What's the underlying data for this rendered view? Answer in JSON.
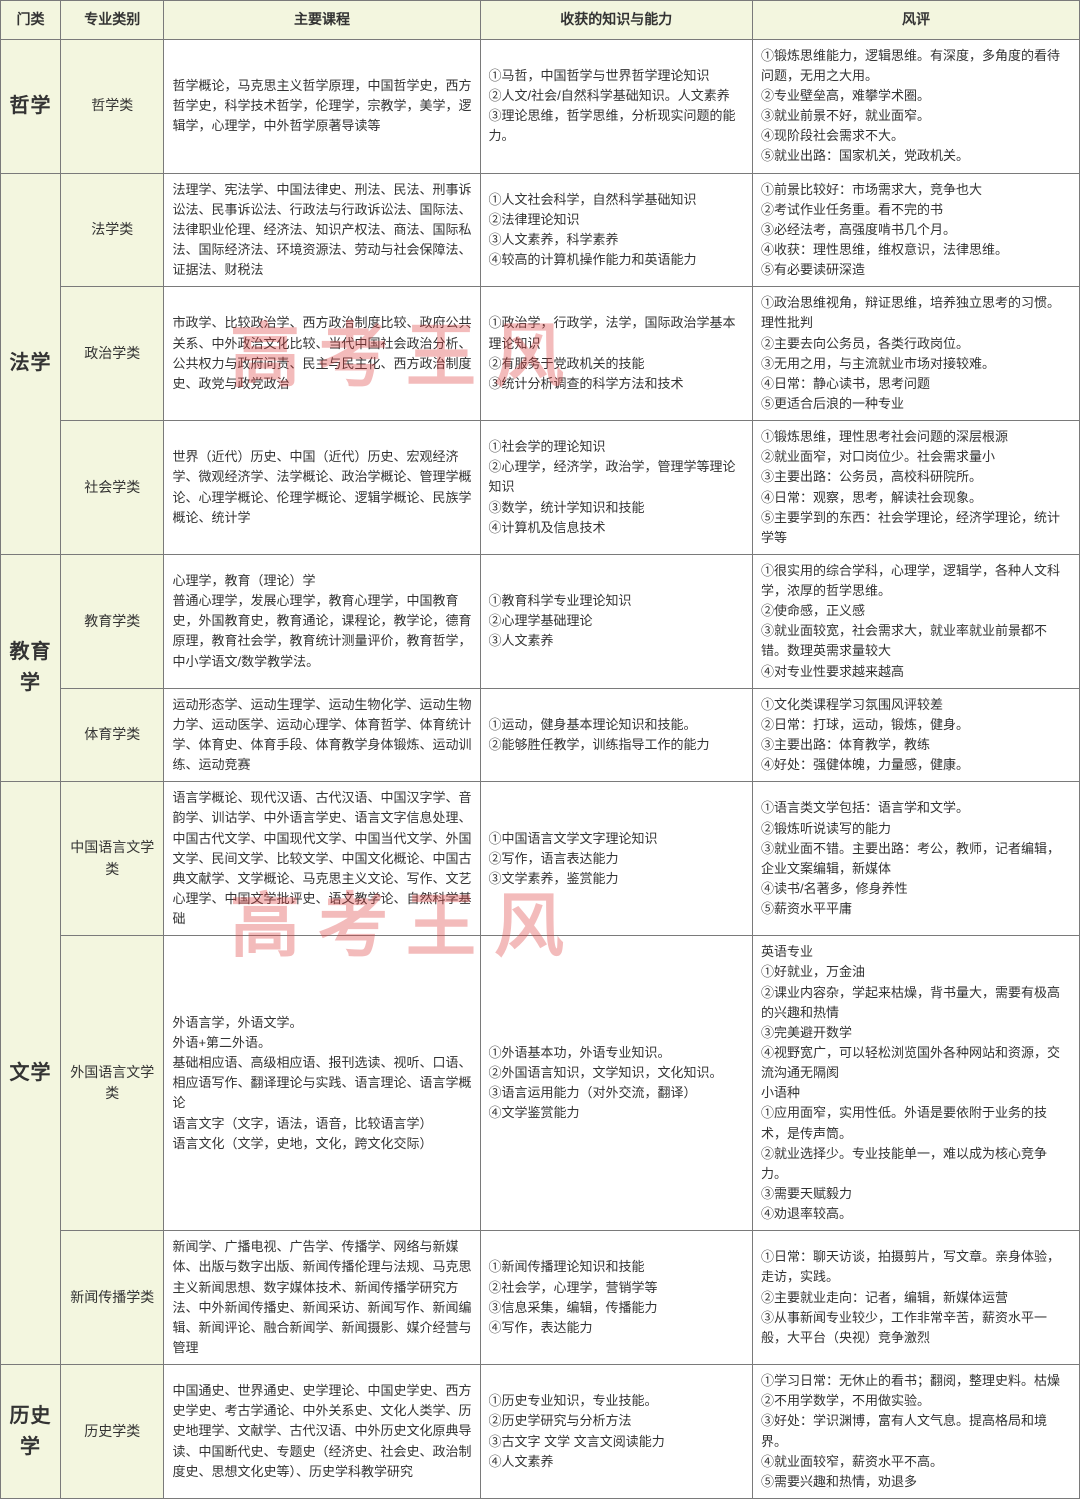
{
  "watermark": "高考王风",
  "headers": {
    "cat": "门类",
    "maj": "专业类别",
    "course": "主要课程",
    "know": "收获的知识与能力",
    "rev": "风评"
  },
  "colors": {
    "header_bg": "#f3f6df",
    "border": "#7a7a7a",
    "text": "#333333",
    "watermark": "rgba(220,60,60,0.35)"
  },
  "rows": [
    {
      "cat": "哲学",
      "catRowspan": 1,
      "maj": "哲学类",
      "course": "哲学概论，马克思主义哲学原理，中国哲学史，西方哲学史，科学技术哲学，伦理学，宗教学，美学，逻辑学，心理学，中外哲学原著导读等",
      "know": "①马哲，中国哲学与世界哲学理论知识\n②人文/社会/自然科学基础知识。人文素养\n③理论思维，哲学思维，分析现实问题的能力。",
      "rev": "①锻炼思维能力，逻辑思维。有深度，多角度的看待问题，无用之大用。\n②专业壁垒高，难攀学术圈。\n③就业前景不好，就业面窄。\n④现阶段社会需求不大。\n⑤就业出路：国家机关，党政机关。"
    },
    {
      "cat": "法学",
      "catRowspan": 3,
      "maj": "法学类",
      "course": "法理学、宪法学、中国法律史、刑法、民法、刑事诉讼法、民事诉讼法、行政法与行政诉讼法、国际法、法律职业伦理、经济法、知识产权法、商法、国际私法、国际经济法、环境资源法、劳动与社会保障法、证据法、财税法",
      "know": "①人文社会科学，自然科学基础知识\n②法律理论知识\n③人文素养，科学素养\n④较高的计算机操作能力和英语能力",
      "rev": "①前景比较好：市场需求大，竞争也大\n②考试作业任务重。看不完的书\n③必经法考，高强度啃书几个月。\n④收获：理性思维，维权意识，法律思维。\n⑤有必要读研深造"
    },
    {
      "maj": "政治学类",
      "course": "市政学、比较政治学、西方政治制度比较、政府公共关系、中外政治文化比较、当代中国社会政治分析、公共权力与政府问责、民主与民主化、西方政治制度史、政党与政党政治",
      "know": "①政治学，行政学，法学，国际政治学基本理论知识\n②有服务于党政机关的技能\n③统计分析调查的科学方法和技术",
      "rev": "①政治思维视角，辩证思维，培养独立思考的习惯。理性批判\n②主要去向公务员，各类行政岗位。\n③无用之用，与主流就业市场对接较难。\n④日常：静心读书，思考问题\n⑤更适合后浪的一种专业"
    },
    {
      "maj": "社会学类",
      "course": "世界（近代）历史、中国（近代）历史、宏观经济学、微观经济学、法学概论、政治学概论、管理学概论、心理学概论、伦理学概论、逻辑学概论、民族学概论、统计学",
      "know": "①社会学的理论知识\n②心理学，经济学，政治学，管理学等理论知识\n③数学，统计学知识和技能\n④计算机及信息技术",
      "rev": "①锻炼思维，理性思考社会问题的深层根源\n②就业面窄，对口岗位少。社会需求量小\n③主要出路：公务员，高校科研院所。\n④日常：观察，思考，解读社会现象。\n⑤主要学到的东西：社会学理论，经济学理论，统计学等"
    },
    {
      "cat": "教育学",
      "catRowspan": 2,
      "maj": "教育学类",
      "course": "心理学，教育（理论）学\n普通心理学，发展心理学，教育心理学，中国教育史，外国教育史，教育通论，课程论，教学论，德育原理，教育社会学，教育统计测量评价，教育哲学，中小学语文/数学教学法。",
      "know": "①教育科学专业理论知识\n②心理学基础理论\n③人文素养",
      "rev": "①很实用的综合学科，心理学，逻辑学，各种人文科学，浓厚的哲学思维。\n②使命感，正义感\n③就业面较宽，社会需求大，就业率就业前景都不错。数理英需求量较大\n④对专业性要求越来越高"
    },
    {
      "maj": "体育学类",
      "course": "运动形态学、运动生理学、运动生物化学、运动生物力学、运动医学、运动心理学、体育哲学、体育统计学、体育史、体育手段、体育教学身体锻炼、运动训练、运动竞赛",
      "know": "①运动，健身基本理论知识和技能。\n②能够胜任教学，训练指导工作的能力",
      "rev": "①文化类课程学习氛围风评较差\n②日常：打球，运动，锻炼，健身。\n③主要出路：体育教学，教练\n④好处：强健体魄，力量感，健康。"
    },
    {
      "cat": "文学",
      "catRowspan": 3,
      "maj": "中国语言文学类",
      "course": "语言学概论、现代汉语、古代汉语、中国汉字学、音韵学、训诂学、中外语言学史、语言文字信息处理、中国古代文学、中国现代文学、中国当代文学、外国文学、民间文学、比较文学、中国文化概论、中国古典文献学、文学概论、马克思主义文论、写作、文艺心理学、中国文学批评史、语文教学论、自然科学基础",
      "know": "①中国语言文学文字理论知识\n②写作，语言表达能力\n③文学素养，鉴赏能力",
      "rev": "①语言类文学包括：语言学和文学。\n②锻炼听说读写的能力\n③就业面不错。主要出路：考公，教师，记者编辑，企业文案编辑，新媒体\n④读书/名著多，修身养性\n⑤薪资水平平庸"
    },
    {
      "maj": "外国语言文学类",
      "course": "外语言学，外语文学。\n外语+第二外语。\n基础相应语、高级相应语、报刊选读、视听、口语、相应语写作、翻译理论与实践、语言理论、语言学概论\n语言文字（文字，语法，语音，比较语言学）\n语言文化（文学，史地，文化，跨文化交际）",
      "know": "①外语基本功，外语专业知识。\n②外国语言知识，文学知识，文化知识。\n③语言运用能力（对外交流，翻译）\n④文学鉴赏能力",
      "rev": "英语专业\n①好就业，万金油\n②课业内容杂，学起来枯燥，背书量大，需要有极高的兴趣和热情\n③完美避开数学\n④视野宽广，可以轻松浏览国外各种网站和资源，交流沟通无隔阂\n小语种\n①应用面窄，实用性低。外语是要依附于业务的技术，是传声筒。\n②就业选择少。专业技能单一，难以成为核心竞争力。\n③需要天赋毅力\n④劝退率较高。"
    },
    {
      "maj": "新闻传播学类",
      "course": "新闻学、广播电视、广告学、传播学、网络与新媒体、出版与数字出版、新闻传播伦理与法规、马克思主义新闻思想、数字媒体技术、新闻传播学研究方法、中外新闻传播史、新闻采访、新闻写作、新闻编辑、新闻评论、融合新闻学、新闻摄影、媒介经营与管理",
      "know": "①新闻传播理论知识和技能\n②社会学，心理学，营销学等\n③信息采集，编辑，传播能力\n④写作，表达能力",
      "rev": "①日常：聊天访谈，拍摄剪片，写文章。亲身体验，走访，实践。\n②主要就业走向：记者，编辑，新媒体运营\n③从事新闻专业较少，工作非常辛苦，薪资水平一般，大平台（央视）竞争激烈"
    },
    {
      "cat": "历史学",
      "catRowspan": 1,
      "maj": "历史学类",
      "course": "中国通史、世界通史、史学理论、中国史学史、西方史学史、考古学通论、中外关系史、文化人类学、历史地理学、文献学、古代汉语、中外历史文化原典导读、中国断代史、专题史（经济史、社会史、政治制度史、思想文化史等）、历史学科教学研究",
      "know": "①历史专业知识，专业技能。\n②历史学研究与分析方法\n③古文字 文学 文言文阅读能力\n④人文素养",
      "rev": "①学习日常：无休止的看书；翻阅，整理史料。枯燥\n②不用学数学，不用做实验。\n③好处：学识渊博，富有人文气息。提高格局和境界。\n④就业面较窄，薪资水平不高。\n⑤需要兴趣和热情，劝退多"
    }
  ]
}
